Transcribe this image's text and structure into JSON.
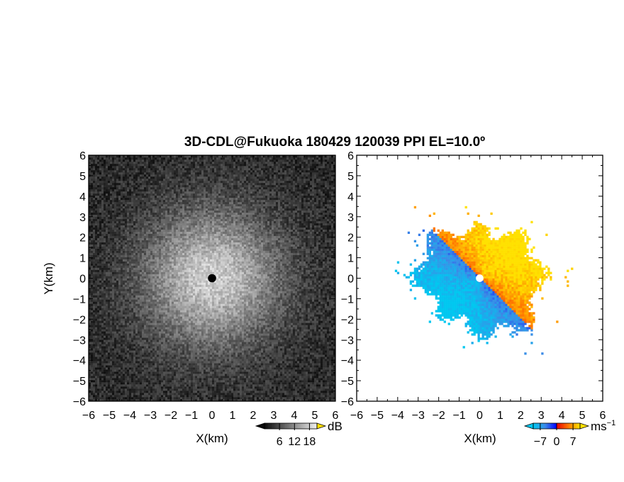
{
  "chart_data": {
    "title": "3D-CDL@Fukuoka 180429 120039 PPI EL=10.0º",
    "panels": [
      {
        "type": "heatmap",
        "quantity": "reflectivity",
        "xlabel": "X(km)",
        "ylabel": "Y(km)",
        "xlim": [
          -6,
          6
        ],
        "ylim": [
          -6,
          6
        ],
        "xticks": [
          "−6",
          "−5",
          "−4",
          "−3",
          "−2",
          "−1",
          "0",
          "1",
          "2",
          "3",
          "4",
          "5",
          "6"
        ],
        "yticks": [
          "−6",
          "−5",
          "−4",
          "−3",
          "−2",
          "−1",
          "0",
          "1",
          "2",
          "3",
          "4",
          "5",
          "6"
        ],
        "colormap": "grayscale",
        "colorbar": {
          "unit": "dB",
          "ticks": [
            "6",
            "12",
            "18"
          ],
          "tick_values": [
            6,
            12,
            18
          ],
          "range": [
            0,
            21
          ]
        },
        "field": {
          "center": [
            0,
            0
          ],
          "peak": 18,
          "background": 3,
          "radial_falloff_km": 2.3,
          "blind_zone_radius_km": 0.2,
          "blind_zone_color": "#000000"
        }
      },
      {
        "type": "heatmap",
        "quantity": "radial velocity",
        "xlabel": "X(km)",
        "ylabel": "",
        "xlim": [
          -6,
          6
        ],
        "ylim": [
          -6,
          6
        ],
        "xticks": [
          "−6",
          "−5",
          "−4",
          "−3",
          "−2",
          "−1",
          "0",
          "1",
          "2",
          "3",
          "4",
          "5",
          "6"
        ],
        "yticks": [
          "−6",
          "−5",
          "−4",
          "−3",
          "−2",
          "−1",
          "0",
          "1",
          "2",
          "3",
          "4",
          "5",
          "6"
        ],
        "colormap": "diverging blue-cyan / red-yellow",
        "colorbar": {
          "unit": "ms",
          "unit_exponent": "−1",
          "ticks": [
            "−7",
            "0",
            "7"
          ],
          "tick_values": [
            -7,
            0,
            7
          ],
          "range": [
            -10,
            10
          ]
        },
        "field": {
          "center": [
            0,
            0
          ],
          "max_range_km": 3.4,
          "approaching_sector_deg": [
            135,
            315
          ],
          "min_velocity": -8,
          "max_velocity": 8,
          "blind_zone_radius_km": 0.15,
          "blind_zone_color": "#ffffff"
        }
      }
    ]
  },
  "colors": {
    "gray_low": "#0a0a0a",
    "gray_high": "#f0f0f0",
    "vel_neg_strong": "#00c8f0",
    "vel_neg": "#3c8ce6",
    "vel_neg_weak": "#0000ff",
    "vel_pos_weak": "#e60000",
    "vel_pos": "#ff7800",
    "vel_pos_strong": "#ffe100"
  }
}
